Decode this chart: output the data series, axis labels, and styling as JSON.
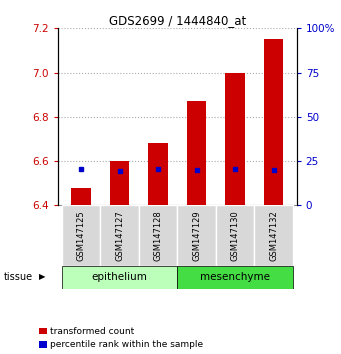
{
  "title": "GDS2699 / 1444840_at",
  "samples": [
    "GSM147125",
    "GSM147127",
    "GSM147128",
    "GSM147129",
    "GSM147130",
    "GSM147132"
  ],
  "transformed_counts": [
    6.48,
    6.6,
    6.68,
    6.87,
    7.0,
    7.15
  ],
  "percentile_values": [
    6.565,
    6.555,
    6.563,
    6.558,
    6.563,
    6.558
  ],
  "bar_bottom": 6.4,
  "ylim_left": [
    6.4,
    7.2
  ],
  "ylim_right": [
    0,
    100
  ],
  "yticks_left": [
    6.4,
    6.6,
    6.8,
    7.0,
    7.2
  ],
  "yticks_right": [
    0,
    25,
    50,
    75,
    100
  ],
  "tissue_groups": [
    {
      "label": "epithelium",
      "n": 3,
      "color": "#bbffbb"
    },
    {
      "label": "mesenchyme",
      "n": 3,
      "color": "#44dd44"
    }
  ],
  "bar_color": "#cc0000",
  "percentile_color": "#0000cc",
  "bar_width": 0.5,
  "grid_color": "#aaaaaa",
  "tissue_label": "tissue",
  "legend_items": [
    "transformed count",
    "percentile rank within the sample"
  ]
}
